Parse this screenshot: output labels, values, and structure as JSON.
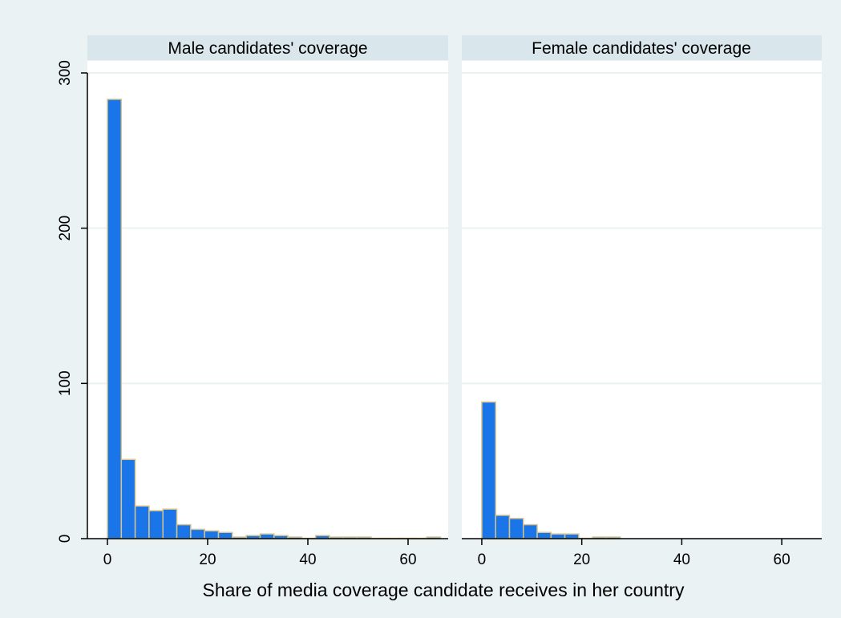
{
  "figure": {
    "xlabel": "Share of media coverage candidate receives in her country",
    "ylim": [
      0,
      300
    ],
    "yticks": [
      0,
      100,
      200,
      300
    ],
    "xticks": [
      0,
      20,
      40,
      60
    ],
    "xlim": [
      -4,
      68
    ],
    "grid": true,
    "colors": {
      "outer_background": "#eaf2f3",
      "panel_background": "#ffffff",
      "panel_header": "#d9e6eb",
      "bar_fill": "#1a75e8",
      "bar_edge": "#d8c48a",
      "grid": "#eaf2f3",
      "axis": "#000000"
    }
  },
  "chart_data": [
    {
      "type": "bar",
      "title": "Male candidates' coverage",
      "bin_width": 2.77,
      "bins_start": [
        0,
        2.77,
        5.54,
        8.31,
        11.08,
        13.85,
        16.62,
        19.39,
        22.16,
        24.93,
        27.7,
        30.47,
        33.24,
        36.01,
        38.78,
        41.55,
        44.32,
        47.09,
        49.86,
        52.63,
        55.4,
        58.17,
        60.94,
        63.71
      ],
      "values": [
        283,
        51,
        21,
        18,
        19,
        9,
        6,
        5,
        4,
        1,
        2,
        3,
        2,
        1,
        0,
        2,
        1,
        1,
        1,
        0,
        0,
        0,
        0,
        1
      ]
    },
    {
      "type": "bar",
      "title": "Female candidates' coverage",
      "bin_width": 2.77,
      "bins_start": [
        0,
        2.77,
        5.54,
        8.31,
        11.08,
        13.85,
        16.62,
        19.39,
        22.16,
        24.93
      ],
      "values": [
        88,
        15,
        13,
        9,
        4,
        3,
        3,
        0,
        1,
        1
      ]
    }
  ]
}
